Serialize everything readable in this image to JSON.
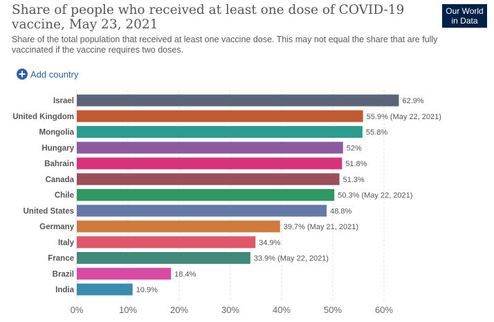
{
  "header": {
    "title": "Share of people who received at least one dose of COVID-19 vaccine, May 23, 2021",
    "subtitle": "Share of the total population that received at least one vaccine dose. This may not equal the share that are fully vaccinated if the vaccine requires two doses.",
    "logo_line1": "Our World",
    "logo_line2": "in Data",
    "add_country_label": "Add country"
  },
  "colors": {
    "accent": "#2d5fa8",
    "logo_bg": "#002147"
  },
  "chart_data": {
    "type": "bar",
    "orientation": "horizontal",
    "title": "Share of people who received at least one dose of COVID-19 vaccine, May 23, 2021",
    "subtitle": "Share of the total population that received at least one vaccine dose. This may not equal the share that are fully vaccinated if the vaccine requires two doses.",
    "xlim": [
      0,
      60
    ],
    "xticks": [
      "0%",
      "10%",
      "20%",
      "30%",
      "40%",
      "50%",
      "60%"
    ],
    "grid": "vertical-dashed",
    "categories": [
      "Israel",
      "United Kingdom",
      "Mongolia",
      "Hungary",
      "Bahrain",
      "Canada",
      "Chile",
      "United States",
      "Germany",
      "Italy",
      "France",
      "Brazil",
      "India"
    ],
    "values": [
      62.9,
      55.9,
      55.8,
      52,
      51.8,
      51.3,
      50.3,
      48.8,
      39.7,
      34.9,
      33.9,
      18.4,
      10.9
    ],
    "value_labels": [
      "62.9%",
      "55.9% (May 22, 2021)",
      "55.8%",
      "52%",
      "51.8%",
      "51.3%",
      "50.3% (May 22, 2021)",
      "48.8%",
      "39.7% (May 21, 2021)",
      "34.9%",
      "33.9% (May 22, 2021)",
      "18.4%",
      "10.9%"
    ],
    "colors": [
      "#5b6478",
      "#c15a2f",
      "#2a9d8f",
      "#8b5aa3",
      "#d6337a",
      "#9c4f5a",
      "#2e9a62",
      "#6479a8",
      "#cf7a3b",
      "#e0566a",
      "#3f8a7a",
      "#d94aa4",
      "#3a8bb0"
    ]
  }
}
